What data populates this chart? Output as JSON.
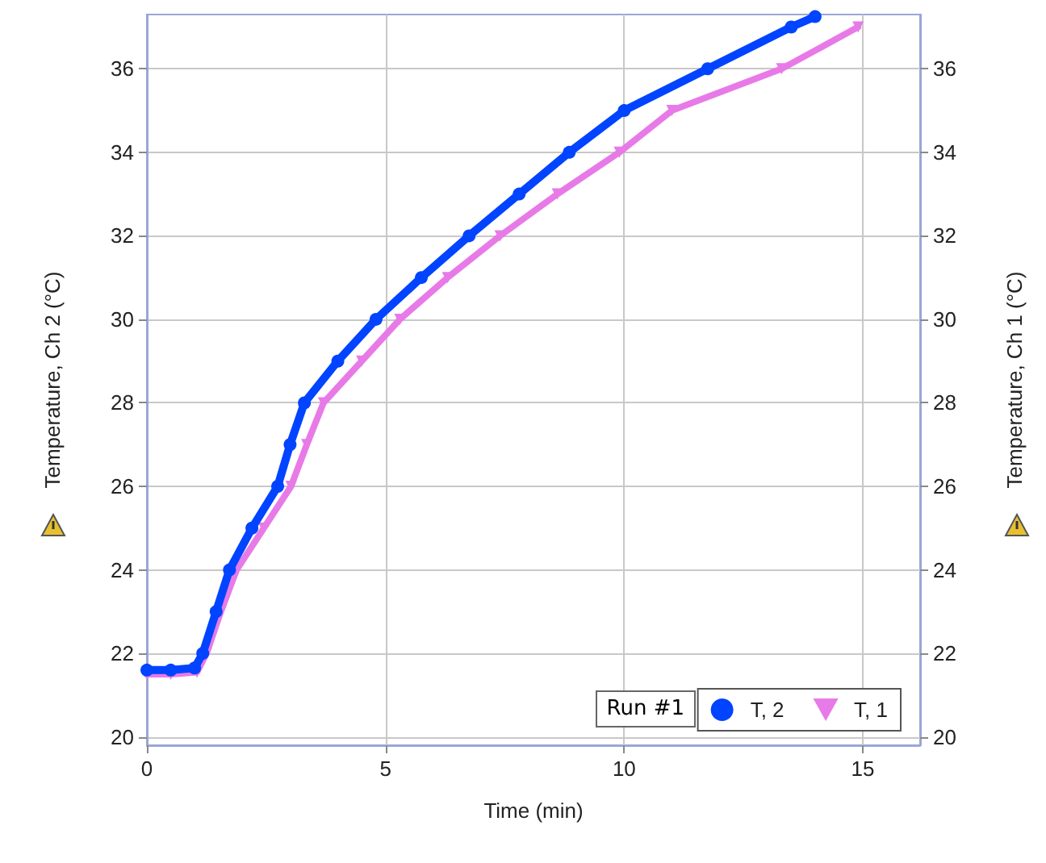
{
  "chart_data": {
    "type": "line",
    "xlabel": "Time (min)",
    "ylabel": "Temperature, Ch 2 (°C)",
    "y2label": "Temperature, Ch 1 (°C)",
    "legend_title": "Run #1",
    "legend": "bottom right",
    "grid": true,
    "xlim": [
      0,
      16.2
    ],
    "xticks": [
      0,
      5,
      10,
      15
    ],
    "ylim": [
      19.8,
      37.3
    ],
    "yticks": [
      20,
      22,
      24,
      26,
      28,
      30,
      32,
      34,
      36
    ],
    "y2lim": [
      19.8,
      37.3
    ],
    "y2ticks": [
      20,
      22,
      24,
      26,
      28,
      30,
      32,
      34,
      36
    ],
    "series": [
      {
        "name": "T, 2",
        "color": "#0044ff",
        "marker": "circle",
        "x": [
          0,
          0.5,
          1.0,
          1.17,
          1.45,
          1.73,
          2.2,
          2.74,
          3.0,
          3.3,
          4.0,
          4.8,
          5.75,
          6.75,
          7.8,
          8.85,
          10.0,
          11.75,
          13.5,
          14.0
        ],
        "values": [
          21.6,
          21.6,
          21.65,
          22,
          23,
          24,
          25,
          26,
          27,
          28,
          29,
          30,
          31,
          32,
          33,
          34,
          35,
          36,
          37,
          37.25
        ]
      },
      {
        "name": "T, 1",
        "color": "#e87ae8",
        "marker": "triangle",
        "x": [
          0,
          0.5,
          1.05,
          1.25,
          1.55,
          1.88,
          2.45,
          3.02,
          3.35,
          3.7,
          4.5,
          5.3,
          6.3,
          7.4,
          8.6,
          9.9,
          11.0,
          13.3,
          14.9
        ],
        "values": [
          21.5,
          21.5,
          21.55,
          22,
          23,
          24,
          25,
          26,
          27,
          28,
          29,
          30,
          31,
          32,
          33,
          34,
          35,
          36,
          37.0
        ]
      }
    ]
  }
}
